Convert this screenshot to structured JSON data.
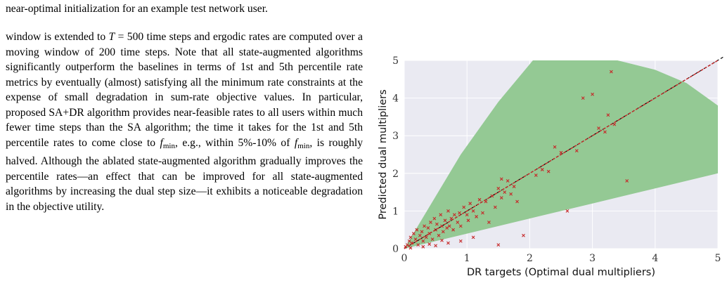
{
  "caption_tail": "near-optimal initialization for an example test network user.",
  "body_text": {
    "p1": "window is extended to",
    "T": "T",
    "eq": " = 500 time steps and ergodic rates are computed over a moving window of 200 time steps. Note that all state-augmented algorithms significantly outperform the baselines in terms of 1st and 5th percentile rate metrics by eventually (almost) satisfying all the minimum rate constraints at the expense of small degradation in sum-rate objective values. In particular, proposed SA+DR algorithm provides near-feasible rates to all users within much fewer time steps than the SA algorithm; the time it takes for the 1st and 5th percentile rates to come close to ",
    "fmin_f": "f",
    "fmin_sub": "min",
    "mid": ", e.g., within 5%-10% of ",
    "rest": ", is roughly halved. Although the ablated state-augmented algorithm gradually improves the percentile rates—an effect that can be improved for all state-augmented algorithms by increasing the dual step size—it exhibits a noticeable degradation in the objective utility."
  },
  "chart_data": {
    "type": "scatter",
    "xlabel": "DR targets (Optimal dual multipliers)",
    "ylabel": "Predicted dual multipliers",
    "xlim": [
      0,
      5
    ],
    "ylim": [
      0,
      5
    ],
    "xticks": [
      "0",
      "1",
      "2",
      "3",
      "4",
      "5"
    ],
    "yticks": [
      "0",
      "1",
      "2",
      "3",
      "4",
      "5"
    ],
    "grid": true,
    "marker": "x",
    "colors": {
      "background": "#eaeaf2",
      "band": "#94c994",
      "points": "#c62828",
      "identity_line": "#000000",
      "fit_line": "#c62828"
    },
    "band": {
      "upper": [
        [
          0,
          0
        ],
        [
          0.9,
          2.5
        ],
        [
          1.2,
          3.2
        ],
        [
          1.5,
          3.9
        ],
        [
          1.9,
          4.7
        ],
        [
          2.05,
          5
        ],
        [
          3.4,
          5
        ],
        [
          4.0,
          4.75
        ],
        [
          4.5,
          4.4
        ],
        [
          5,
          3.8
        ]
      ],
      "lower": [
        [
          0,
          0
        ],
        [
          1,
          0.4
        ],
        [
          2,
          0.8
        ],
        [
          3,
          1.2
        ],
        [
          4,
          1.6
        ],
        [
          5,
          2.0
        ]
      ]
    },
    "identity_line": [
      [
        0,
        0
      ],
      [
        5,
        5
      ]
    ],
    "fit_line": [
      [
        0,
        0
      ],
      [
        5,
        5
      ]
    ],
    "points": [
      [
        0.02,
        0.05
      ],
      [
        0.05,
        0.1
      ],
      [
        0.08,
        0.2
      ],
      [
        0.1,
        0.3
      ],
      [
        0.12,
        0.15
      ],
      [
        0.15,
        0.4
      ],
      [
        0.18,
        0.25
      ],
      [
        0.2,
        0.5
      ],
      [
        0.22,
        0.1
      ],
      [
        0.25,
        0.35
      ],
      [
        0.28,
        0.45
      ],
      [
        0.3,
        0.2
      ],
      [
        0.32,
        0.6
      ],
      [
        0.35,
        0.3
      ],
      [
        0.38,
        0.55
      ],
      [
        0.4,
        0.4
      ],
      [
        0.42,
        0.7
      ],
      [
        0.45,
        0.25
      ],
      [
        0.48,
        0.8
      ],
      [
        0.5,
        0.5
      ],
      [
        0.52,
        0.65
      ],
      [
        0.55,
        0.35
      ],
      [
        0.58,
        0.9
      ],
      [
        0.6,
        0.6
      ],
      [
        0.62,
        0.45
      ],
      [
        0.65,
        0.75
      ],
      [
        0.68,
        0.55
      ],
      [
        0.7,
        1.0
      ],
      [
        0.72,
        0.6
      ],
      [
        0.75,
        0.8
      ],
      [
        0.78,
        0.5
      ],
      [
        0.8,
        0.9
      ],
      [
        0.85,
        0.7
      ],
      [
        0.88,
        0.95
      ],
      [
        0.9,
        0.6
      ],
      [
        0.95,
        1.1
      ],
      [
        1.0,
        0.9
      ],
      [
        1.02,
        0.75
      ],
      [
        1.05,
        1.2
      ],
      [
        1.1,
        1.0
      ],
      [
        1.15,
        0.85
      ],
      [
        1.2,
        1.3
      ],
      [
        1.25,
        0.95
      ],
      [
        1.3,
        1.25
      ],
      [
        1.35,
        0.7
      ],
      [
        1.4,
        1.4
      ],
      [
        1.45,
        1.1
      ],
      [
        1.5,
        1.6
      ],
      [
        1.55,
        1.35
      ],
      [
        1.6,
        1.5
      ],
      [
        1.65,
        1.8
      ],
      [
        1.7,
        1.45
      ],
      [
        1.75,
        1.65
      ],
      [
        1.8,
        1.25
      ],
      [
        1.5,
        0.1
      ],
      [
        1.9,
        0.35
      ],
      [
        1.55,
        1.85
      ],
      [
        2.1,
        1.95
      ],
      [
        2.2,
        2.1
      ],
      [
        2.3,
        2.05
      ],
      [
        2.4,
        2.7
      ],
      [
        2.5,
        2.55
      ],
      [
        2.6,
        1.0
      ],
      [
        2.75,
        2.6
      ],
      [
        2.85,
        4.0
      ],
      [
        3.0,
        4.1
      ],
      [
        3.1,
        3.2
      ],
      [
        3.2,
        3.1
      ],
      [
        3.25,
        3.55
      ],
      [
        3.3,
        4.7
      ],
      [
        3.35,
        3.3
      ],
      [
        3.55,
        1.8
      ],
      [
        0.1,
        0.02
      ],
      [
        0.3,
        0.05
      ],
      [
        0.5,
        0.08
      ],
      [
        0.7,
        0.15
      ],
      [
        0.9,
        0.2
      ],
      [
        1.1,
        0.3
      ],
      [
        0.4,
        0.12
      ],
      [
        0.6,
        0.22
      ]
    ]
  }
}
